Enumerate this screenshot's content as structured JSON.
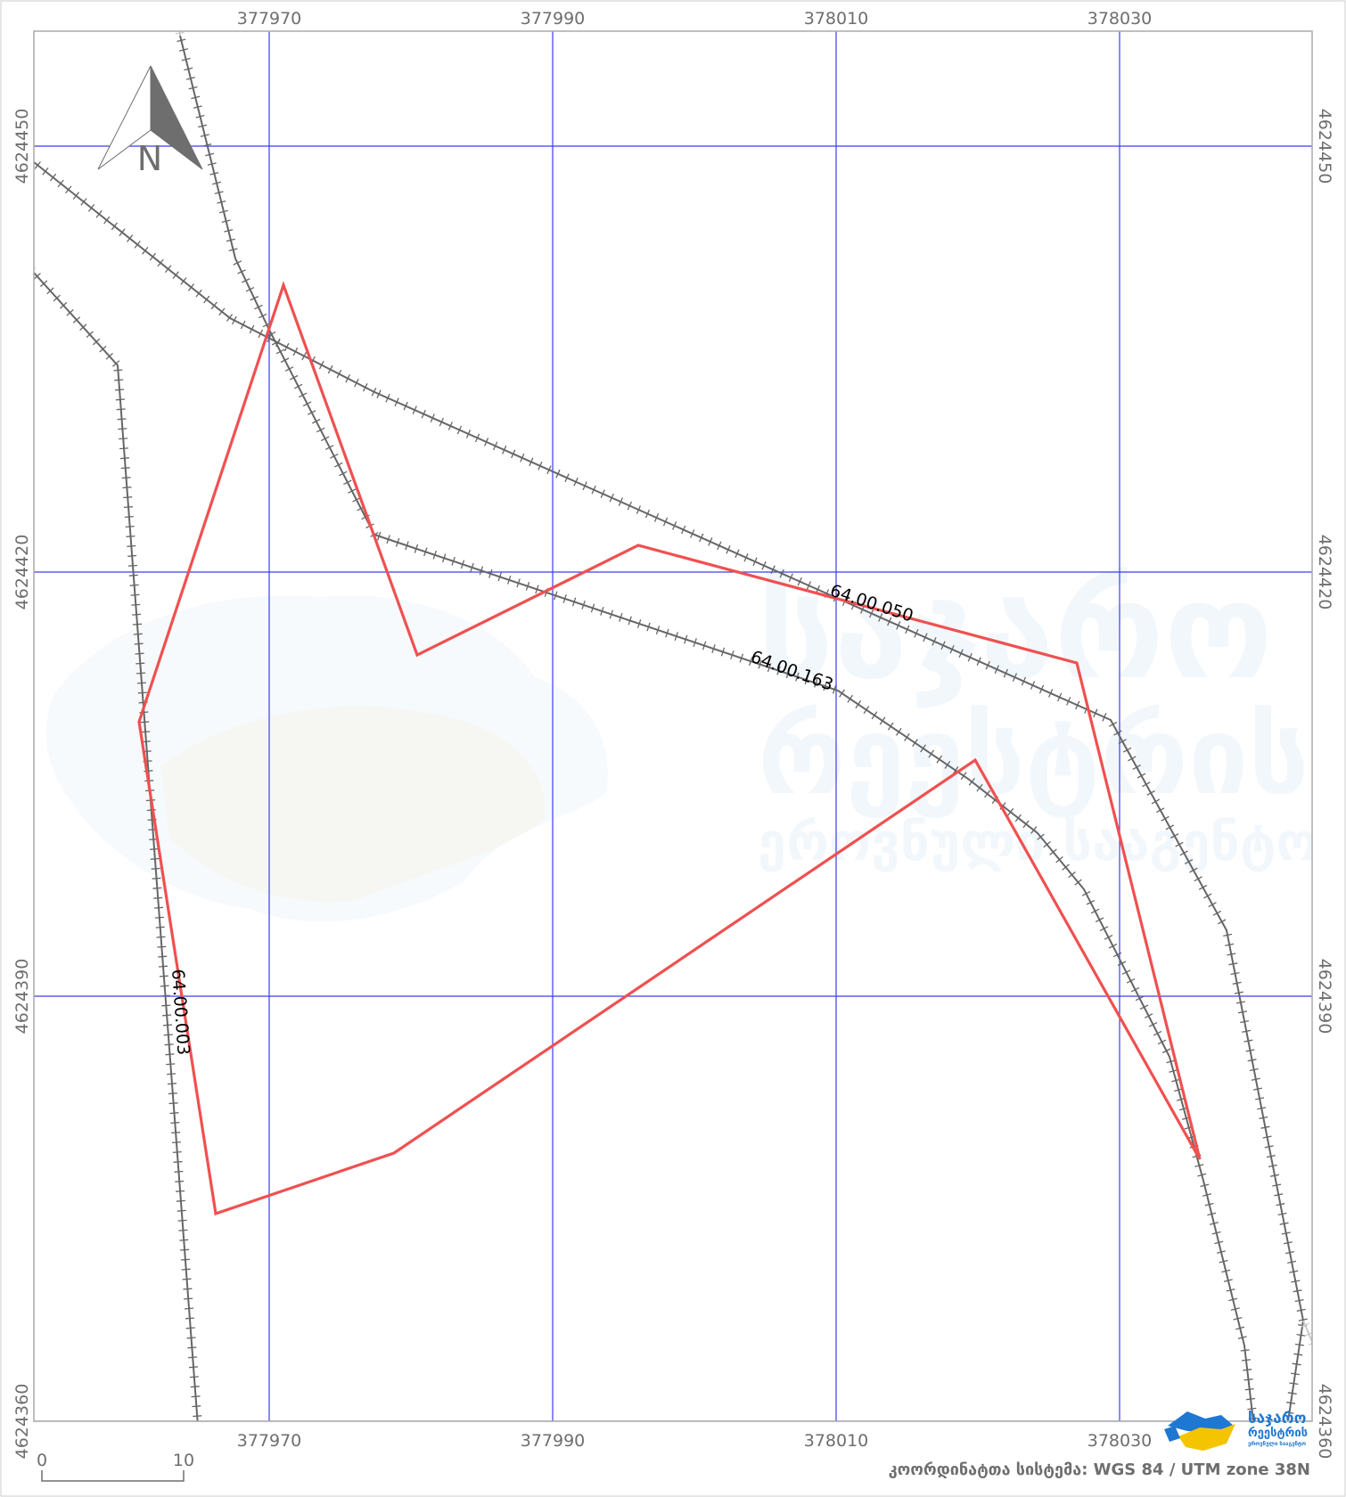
{
  "map": {
    "crs_label": "კოორდინატთა სისტემა: WGS 84 / UTM zone 38N",
    "north_arrow_label": "N",
    "scale_bar": {
      "start_label": "0",
      "end_label": "10",
      "length_m": 10
    },
    "grid": {
      "easting_labels": [
        "377970",
        "377990",
        "378010",
        "378030"
      ],
      "northing_labels": [
        "4624450",
        "4624420",
        "4624390",
        "4624360"
      ]
    },
    "parcel_codes": [
      "64.00.050",
      "64.00.163",
      "64.00.003"
    ],
    "watermark_lines": [
      "საჯარო",
      "რეესტრის",
      "ეროვნული სააგენტო"
    ],
    "logo_lines": [
      "საჯარო",
      "რეესტრის",
      "ეროვნული სააგენტო"
    ],
    "colors": {
      "grid": "#3c3cf0",
      "parcel_outline": "#f05050",
      "railway": "#666666",
      "frame": "#aaaaaa",
      "logo_blue": "#1e78d2",
      "logo_yellow": "#f5c400"
    }
  }
}
